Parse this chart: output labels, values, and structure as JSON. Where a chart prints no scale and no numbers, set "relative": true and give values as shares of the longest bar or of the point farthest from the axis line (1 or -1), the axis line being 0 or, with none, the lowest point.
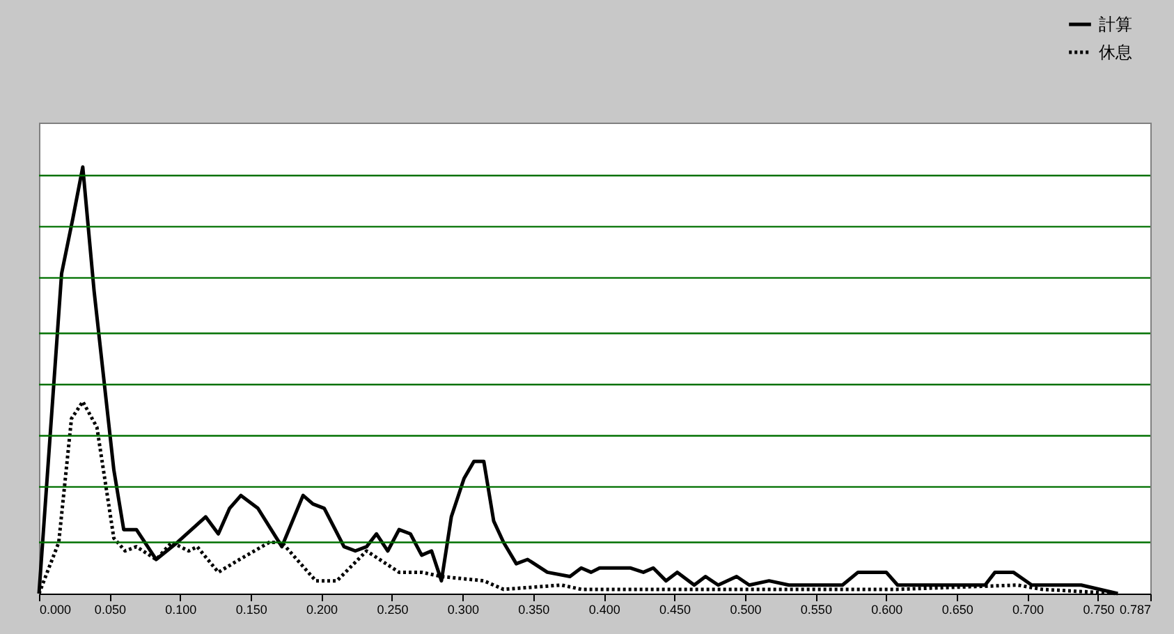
{
  "chart_data": {
    "type": "line",
    "relative": true,
    "legend": "top right",
    "marker": "none",
    "xlim": [
      0,
      0.787
    ],
    "ref_lines": [
      {
        "axis": "y",
        "value": 0.12,
        "color": "#007000"
      },
      {
        "axis": "y",
        "value": 0.25,
        "color": "#007000"
      },
      {
        "axis": "y",
        "value": 0.37,
        "color": "#007000"
      },
      {
        "axis": "y",
        "value": 0.49,
        "color": "#007000"
      },
      {
        "axis": "y",
        "value": 0.61,
        "color": "#007000"
      },
      {
        "axis": "y",
        "value": 0.74,
        "color": "#007000"
      },
      {
        "axis": "y",
        "value": 0.86,
        "color": "#007000"
      },
      {
        "axis": "y",
        "value": 0.98,
        "color": "#007000"
      }
    ],
    "xticks": [
      {
        "value": 0,
        "label": "0.000"
      },
      {
        "value": 0.05,
        "label": "0.050"
      },
      {
        "value": 0.1,
        "label": "0.100"
      },
      {
        "value": 0.15,
        "label": "0.150"
      },
      {
        "value": 0.2,
        "label": "0.200"
      },
      {
        "value": 0.25,
        "label": "0.250"
      },
      {
        "value": 0.3,
        "label": "0.300"
      },
      {
        "value": 0.35,
        "label": "0.350"
      },
      {
        "value": 0.4,
        "label": "0.400"
      },
      {
        "value": 0.45,
        "label": "0.450"
      },
      {
        "value": 0.5,
        "label": "0.500"
      },
      {
        "value": 0.55,
        "label": "0.550"
      },
      {
        "value": 0.6,
        "label": "0.600"
      },
      {
        "value": 0.65,
        "label": "0.650"
      },
      {
        "value": 0.7,
        "label": "0.700"
      },
      {
        "value": 0.75,
        "label": "0.750"
      },
      {
        "value": 0.787,
        "label": "0.787"
      }
    ],
    "series": [
      {
        "name": "計算",
        "color": "#000000",
        "line_style": "solid",
        "x": [
          0,
          0.016,
          0.024,
          0.031,
          0.039,
          0.053,
          0.06,
          0.069,
          0.083,
          0.098,
          0.118,
          0.127,
          0.135,
          0.143,
          0.155,
          0.172,
          0.187,
          0.194,
          0.202,
          0.216,
          0.224,
          0.232,
          0.239,
          0.247,
          0.255,
          0.263,
          0.271,
          0.278,
          0.285,
          0.292,
          0.301,
          0.308,
          0.315,
          0.322,
          0.329,
          0.338,
          0.346,
          0.36,
          0.376,
          0.384,
          0.391,
          0.397,
          0.404,
          0.411,
          0.419,
          0.428,
          0.435,
          0.444,
          0.452,
          0.464,
          0.472,
          0.481,
          0.494,
          0.503,
          0.517,
          0.531,
          0.569,
          0.58,
          0.6,
          0.608,
          0.615,
          0.642,
          0.67,
          0.677,
          0.69,
          0.703,
          0.738,
          0.764
        ],
        "values": [
          0,
          0.75,
          0.88,
          1,
          0.71,
          0.29,
          0.15,
          0.15,
          0.08,
          0.12,
          0.18,
          0.14,
          0.2,
          0.23,
          0.2,
          0.11,
          0.23,
          0.21,
          0.2,
          0.11,
          0.1,
          0.11,
          0.14,
          0.1,
          0.15,
          0.14,
          0.09,
          0.1,
          0.03,
          0.18,
          0.27,
          0.31,
          0.31,
          0.17,
          0.12,
          0.07,
          0.08,
          0.05,
          0.04,
          0.06,
          0.05,
          0.06,
          0.06,
          0.06,
          0.06,
          0.05,
          0.06,
          0.03,
          0.05,
          0.02,
          0.04,
          0.02,
          0.04,
          0.02,
          0.03,
          0.02,
          0.02,
          0.05,
          0.05,
          0.02,
          0.02,
          0.02,
          0.02,
          0.05,
          0.05,
          0.02,
          0.02,
          0
        ]
      },
      {
        "name": "休息",
        "color": "#000000",
        "line_style": "dotted",
        "x": [
          0,
          0.014,
          0.023,
          0.031,
          0.041,
          0.053,
          0.061,
          0.069,
          0.083,
          0.094,
          0.106,
          0.112,
          0.127,
          0.142,
          0.163,
          0.172,
          0.196,
          0.211,
          0.232,
          0.255,
          0.271,
          0.285,
          0.315,
          0.329,
          0.37,
          0.384,
          0.438,
          0.506,
          0.608,
          0.693,
          0.71,
          0.764
        ],
        "values": [
          0,
          0.12,
          0.41,
          0.45,
          0.39,
          0.13,
          0.1,
          0.11,
          0.08,
          0.12,
          0.1,
          0.11,
          0.05,
          0.08,
          0.12,
          0.12,
          0.03,
          0.03,
          0.1,
          0.05,
          0.05,
          0.04,
          0.03,
          0.01,
          0.02,
          0.01,
          0.01,
          0.01,
          0.01,
          0.02,
          0.01,
          0
        ]
      }
    ]
  }
}
